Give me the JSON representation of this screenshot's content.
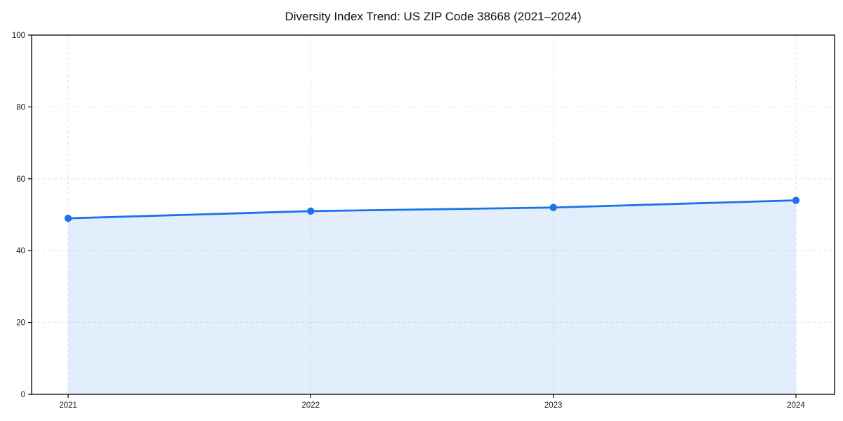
{
  "chart_data": {
    "type": "area",
    "title": "Diversity Index Trend: US ZIP Code 38668 (2021–2024)",
    "categories": [
      "2021",
      "2022",
      "2023",
      "2024"
    ],
    "series": [
      {
        "name": "Diversity Index",
        "values": [
          49,
          51,
          52,
          54
        ]
      }
    ],
    "xlabel": "",
    "ylabel": "",
    "ylim": [
      0,
      100
    ],
    "y_ticks": [
      0,
      20,
      40,
      60,
      80,
      100
    ],
    "grid": true,
    "grid_style": "dashed",
    "legend": "none",
    "colors": {
      "line": "#1a73e8",
      "marker": "#1a73e8",
      "fill": "rgba(26,115,232,0.12)",
      "grid": "#e2e2e2",
      "spine": "#000000",
      "tick_text": "#1a1a1a",
      "title_text": "#111111",
      "background": "#ffffff"
    }
  }
}
